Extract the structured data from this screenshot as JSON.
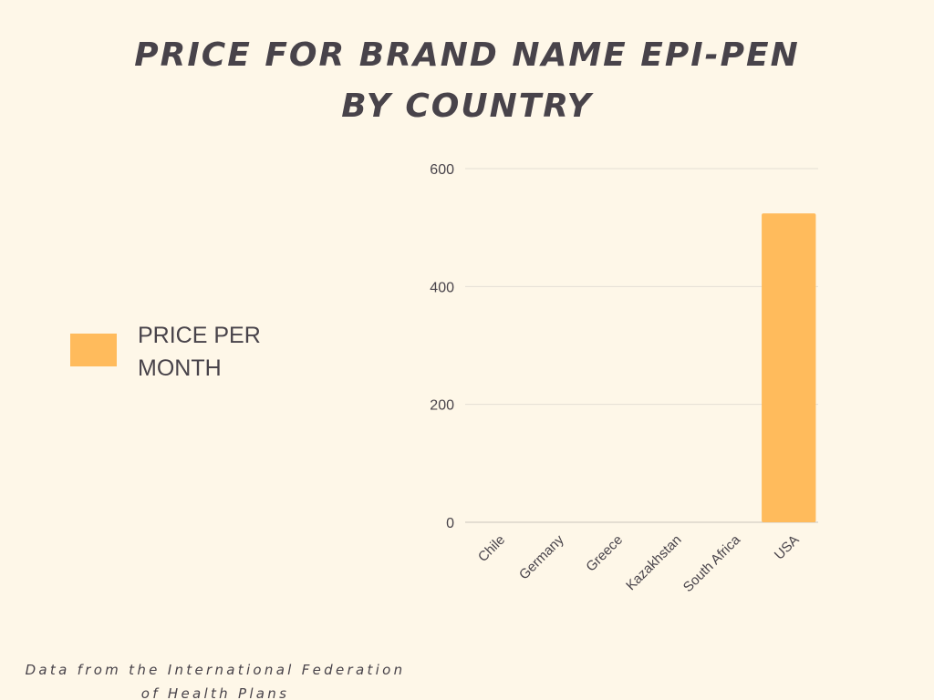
{
  "title_lines": [
    "PRICE FOR BRAND NAME EPI-PEN",
    "BY COUNTRY"
  ],
  "legend": {
    "lines": [
      "PRICE PER",
      "MONTH"
    ]
  },
  "source_lines": [
    "Data from the International Federation",
    "of Health Plans"
  ],
  "colors": {
    "background": "#fef7e8",
    "text": "#48434a",
    "bar": "#ffbb5c",
    "gridline": "#e4dfd5",
    "baseline": "#c9c4bb"
  },
  "chart_data": {
    "type": "bar",
    "title": "PRICE FOR BRAND NAME EPI-PEN BY COUNTRY",
    "xlabel": "",
    "ylabel": "",
    "categories": [
      "Chile",
      "Germany",
      "Greece",
      "Kazakhstan",
      "South Africa",
      "USA"
    ],
    "series": [
      {
        "name": "PRICE PER MONTH",
        "values": [
          0,
          0,
          0,
          0,
          0,
          524
        ]
      }
    ],
    "ylim": [
      0,
      600
    ],
    "yticks": [
      0,
      200,
      400,
      600
    ],
    "grid": true,
    "legend_position": "left"
  }
}
